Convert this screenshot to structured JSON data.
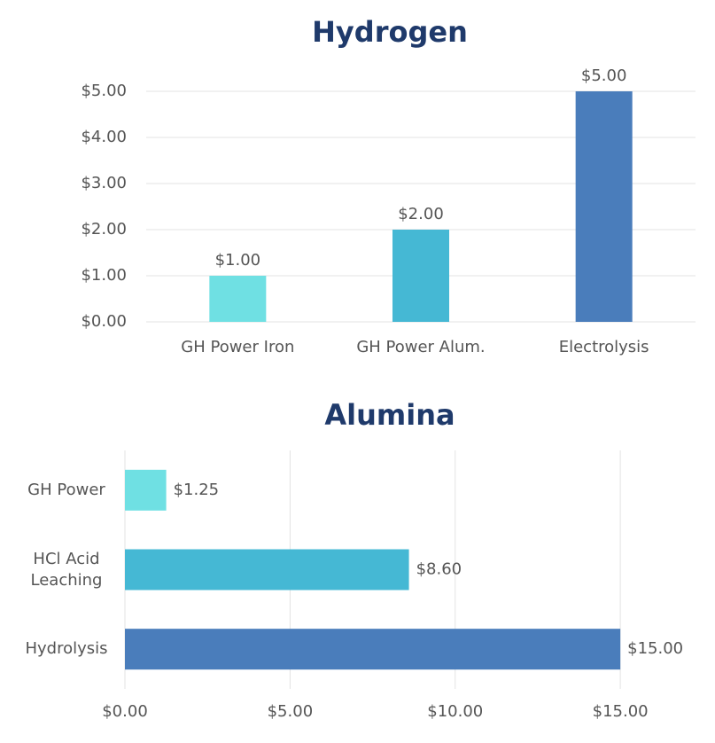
{
  "chart_data": [
    {
      "type": "bar",
      "orientation": "vertical",
      "title": "Hydrogen",
      "categories": [
        "GH Power Iron",
        "GH Power Alum.",
        "Electrolysis"
      ],
      "values": [
        1,
        2,
        5
      ],
      "value_labels": [
        "$1.00",
        "$2.00",
        "$5.00"
      ],
      "colors": [
        "#6fe0e3",
        "#45b8d4",
        "#4a7dbb"
      ],
      "ylim": [
        0,
        5
      ],
      "yticks": [
        {
          "value": 0,
          "label": "$0.00"
        },
        {
          "value": 1,
          "label": "$1.00"
        },
        {
          "value": 2,
          "label": "$2.00"
        },
        {
          "value": 3,
          "label": "$3.00"
        },
        {
          "value": 4,
          "label": "$4.00"
        },
        {
          "value": 5,
          "label": "$5.00"
        }
      ],
      "grid": true
    },
    {
      "type": "bar",
      "orientation": "horizontal",
      "title": "Alumina",
      "categories": [
        "GH Power",
        "HCl Acid Leaching",
        "Hydrolysis"
      ],
      "values": [
        1.25,
        8.6,
        15
      ],
      "value_labels": [
        "$1.25",
        "$8.60",
        "$15.00"
      ],
      "colors": [
        "#6fe0e3",
        "#45b8d4",
        "#4a7dbb"
      ],
      "xlim": [
        0,
        17.25
      ],
      "xticks": [
        {
          "value": 0,
          "label": "$0.00"
        },
        {
          "value": 5,
          "label": "$5.00"
        },
        {
          "value": 10,
          "label": "$10.00"
        },
        {
          "value": 15,
          "label": "$15.00"
        }
      ],
      "grid": true
    }
  ]
}
